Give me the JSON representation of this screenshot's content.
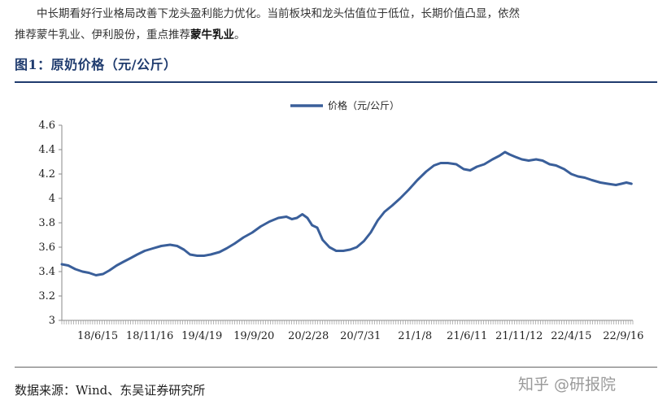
{
  "intro": {
    "line1": "中长期看好行业格局改善下龙头盈利能力优化。当前板块和龙头估值位于低位，长期价值凸显，依然",
    "line2_prefix": "推荐蒙牛乳业、伊利股份，重点推荐",
    "line2_bold": "蒙牛乳业",
    "line2_suffix": "。"
  },
  "figure_title": "图1：原奶价格（元/公斤）",
  "source": "数据来源：Wind、东吴证券研究所",
  "watermark": "知乎 @研报院",
  "colors": {
    "line": "#3a5f9a",
    "title": "#1f3b6e"
  },
  "chart_data": {
    "type": "line",
    "title": "",
    "xlabel": "",
    "ylabel": "",
    "ylim": [
      3,
      4.6
    ],
    "yticks": [
      "3",
      "3.2",
      "3.4",
      "3.6",
      "3.8",
      "4",
      "4.2",
      "4.4",
      "4.6"
    ],
    "xlim": [
      "2018-03-01",
      "2022-10-14"
    ],
    "xtick_labels": [
      {
        "date": "2018-06-15",
        "label": "18/6/15"
      },
      {
        "date": "2018-11-16",
        "label": "18/11/16"
      },
      {
        "date": "2019-04-19",
        "label": "19/4/19"
      },
      {
        "date": "2019-09-20",
        "label": "19/9/20"
      },
      {
        "date": "2020-02-28",
        "label": "20/2/28"
      },
      {
        "date": "2020-07-31",
        "label": "20/7/31"
      },
      {
        "date": "2021-01-08",
        "label": "21/1/8"
      },
      {
        "date": "2021-06-11",
        "label": "21/6/11"
      },
      {
        "date": "2021-11-12",
        "label": "21/11/12"
      },
      {
        "date": "2022-04-15",
        "label": "22/4/15"
      },
      {
        "date": "2022-09-16",
        "label": "22/9/16"
      }
    ],
    "legend": "top-center",
    "grid": false,
    "series": [
      {
        "name": "价格（元/公斤）",
        "points": [
          [
            "2018-03-01",
            3.46
          ],
          [
            "2018-03-20",
            3.45
          ],
          [
            "2018-04-10",
            3.42
          ],
          [
            "2018-05-01",
            3.4
          ],
          [
            "2018-05-20",
            3.39
          ],
          [
            "2018-06-10",
            3.37
          ],
          [
            "2018-07-01",
            3.38
          ],
          [
            "2018-07-20",
            3.41
          ],
          [
            "2018-08-10",
            3.45
          ],
          [
            "2018-08-30",
            3.48
          ],
          [
            "2018-09-20",
            3.51
          ],
          [
            "2018-10-10",
            3.54
          ],
          [
            "2018-11-01",
            3.57
          ],
          [
            "2018-11-25",
            3.59
          ],
          [
            "2018-12-20",
            3.61
          ],
          [
            "2019-01-15",
            3.62
          ],
          [
            "2019-02-05",
            3.61
          ],
          [
            "2019-02-25",
            3.58
          ],
          [
            "2019-03-15",
            3.54
          ],
          [
            "2019-04-05",
            3.53
          ],
          [
            "2019-04-25",
            3.53
          ],
          [
            "2019-05-15",
            3.54
          ],
          [
            "2019-06-10",
            3.56
          ],
          [
            "2019-07-01",
            3.59
          ],
          [
            "2019-07-25",
            3.63
          ],
          [
            "2019-08-20",
            3.68
          ],
          [
            "2019-09-15",
            3.72
          ],
          [
            "2019-10-10",
            3.77
          ],
          [
            "2019-11-05",
            3.81
          ],
          [
            "2019-12-01",
            3.84
          ],
          [
            "2019-12-25",
            3.85
          ],
          [
            "2020-01-10",
            3.83
          ],
          [
            "2020-01-25",
            3.84
          ],
          [
            "2020-02-10",
            3.87
          ],
          [
            "2020-02-25",
            3.84
          ],
          [
            "2020-03-10",
            3.78
          ],
          [
            "2020-03-25",
            3.76
          ],
          [
            "2020-04-10",
            3.66
          ],
          [
            "2020-04-30",
            3.6
          ],
          [
            "2020-05-20",
            3.57
          ],
          [
            "2020-06-10",
            3.57
          ],
          [
            "2020-06-30",
            3.58
          ],
          [
            "2020-07-20",
            3.6
          ],
          [
            "2020-08-10",
            3.65
          ],
          [
            "2020-08-30",
            3.72
          ],
          [
            "2020-09-20",
            3.82
          ],
          [
            "2020-10-10",
            3.89
          ],
          [
            "2020-11-01",
            3.94
          ],
          [
            "2020-11-25",
            4.0
          ],
          [
            "2020-12-20",
            4.07
          ],
          [
            "2021-01-15",
            4.15
          ],
          [
            "2021-02-10",
            4.22
          ],
          [
            "2021-03-05",
            4.27
          ],
          [
            "2021-03-25",
            4.29
          ],
          [
            "2021-04-15",
            4.29
          ],
          [
            "2021-05-10",
            4.28
          ],
          [
            "2021-06-01",
            4.24
          ],
          [
            "2021-06-20",
            4.23
          ],
          [
            "2021-07-10",
            4.26
          ],
          [
            "2021-08-01",
            4.28
          ],
          [
            "2021-08-25",
            4.32
          ],
          [
            "2021-09-15",
            4.35
          ],
          [
            "2021-10-01",
            4.38
          ],
          [
            "2021-10-15",
            4.36
          ],
          [
            "2021-11-01",
            4.34
          ],
          [
            "2021-11-20",
            4.32
          ],
          [
            "2021-12-10",
            4.31
          ],
          [
            "2022-01-01",
            4.32
          ],
          [
            "2022-01-20",
            4.31
          ],
          [
            "2022-02-10",
            4.28
          ],
          [
            "2022-03-01",
            4.27
          ],
          [
            "2022-03-25",
            4.24
          ],
          [
            "2022-04-15",
            4.2
          ],
          [
            "2022-05-05",
            4.18
          ],
          [
            "2022-05-25",
            4.17
          ],
          [
            "2022-06-15",
            4.15
          ],
          [
            "2022-07-10",
            4.13
          ],
          [
            "2022-08-01",
            4.12
          ],
          [
            "2022-08-25",
            4.11
          ],
          [
            "2022-09-10",
            4.12
          ],
          [
            "2022-09-25",
            4.13
          ],
          [
            "2022-10-10",
            4.12
          ]
        ]
      }
    ]
  }
}
